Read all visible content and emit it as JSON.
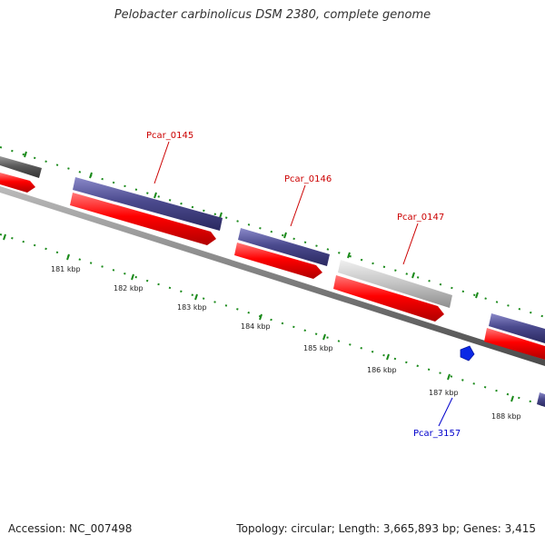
{
  "title": "Pelobacter carbinolicus DSM 2380, complete genome",
  "accession": "Accession: NC_007498",
  "summary": "Topology: circular; Length: 3,665,893 bp; Genes: 3,415",
  "colors": {
    "backbone": "#808080",
    "forward_gene": "#4b4a8e",
    "reverse_gene": "#ff0000",
    "selected_gene": "#c8c8c8",
    "tick": "#1a8a1a",
    "label_red": "#cc0000",
    "label_blue": "#0000cc",
    "marker": "#0a28e6"
  },
  "ticks": [
    "181 kbp",
    "182 kbp",
    "183 kbp",
    "184 kbp",
    "185 kbp",
    "186 kbp",
    "187 kbp",
    "188 kbp"
  ],
  "gene_labels": [
    {
      "text": "Pcar_0145",
      "color": "#cc0000"
    },
    {
      "text": "Pcar_0146",
      "color": "#cc0000"
    },
    {
      "text": "Pcar_0147",
      "color": "#cc0000"
    },
    {
      "text": "Pcar_3157",
      "color": "#0000cc"
    }
  ]
}
